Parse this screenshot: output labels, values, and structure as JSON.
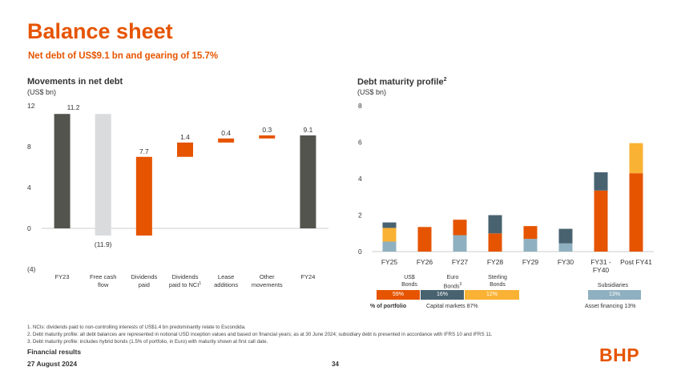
{
  "page": {
    "title": "Balance sheet",
    "subtitle": "Net debt of US$9.1 bn and gearing of 15.7%",
    "footer_title": "Financial results",
    "footer_date": "27 August 2024",
    "page_number": "34",
    "logo": "BHP"
  },
  "colors": {
    "accent": "#e65400",
    "dark": "#54544f",
    "light_grey": "#d9dbdd",
    "navy": "#486270",
    "steel": "#8fb0c0",
    "amber": "#f9b233"
  },
  "footnotes": [
    "1.  NCIs: dividends paid to non-controlling interests of US$1.4 bn predominantly relate to Escondida.",
    "2.  Debt maturity profile: all debt balances are represented in notional USD inception values and based on financial years; as at 30 June 2024; subsidiary debt is presented in accordance with IFRS 10 and IFRS 11.",
    "3.  Debt maturity profile: includes hybrid bonds (1.5% of portfolio, in Euro) with maturity shown at first call date."
  ],
  "legend": {
    "us_label": "US$",
    "us_label2": "Bonds",
    "euro_label": "Euro",
    "euro_label2": "Bonds",
    "euro_sup": "3",
    "sterling_label": "Sterling",
    "sterling_label2": "Bonds",
    "subs_label": "Subsidiaries",
    "us_pct": "59%",
    "euro_pct": "16%",
    "sterling_pct": "12%",
    "subs_pct": "13%",
    "portfolio_label": "% of portfolio",
    "capital_markets": "Capital markets 87%",
    "asset_financing": "Asset financing 13%"
  },
  "chart_data": [
    {
      "type": "waterfall",
      "title": "Movements in net debt",
      "unit": "(US$ bn)",
      "ylim": [
        -4,
        12
      ],
      "yticks": [
        -4,
        0,
        4,
        8,
        12
      ],
      "ytick_labels": [
        "(4)",
        "0",
        "4",
        "8",
        "12"
      ],
      "categories": [
        "FY23",
        "Free cash flow",
        "Dividends paid",
        "Dividends paid to NCI",
        "Lease additions",
        "Other movements",
        "FY24"
      ],
      "category_lines": [
        [
          "FY23"
        ],
        [
          "Free cash",
          "flow"
        ],
        [
          "Dividends",
          "paid"
        ],
        [
          "Dividends",
          "paid to NCI"
        ],
        [
          "Lease",
          "additions"
        ],
        [
          "Other",
          "movements"
        ],
        [
          "FY24"
        ]
      ],
      "cat_sup": [
        null,
        null,
        null,
        "1",
        null,
        null,
        null
      ],
      "steps": [
        {
          "from": 0,
          "to": 11.2,
          "kind": "total",
          "label": "11.2"
        },
        {
          "from": 11.2,
          "to": -0.7,
          "kind": "decrease",
          "label": "(11.9)"
        },
        {
          "from": -0.7,
          "to": 7.0,
          "kind": "increase",
          "label": "7.7"
        },
        {
          "from": 7.0,
          "to": 8.4,
          "kind": "increase",
          "label": "1.4"
        },
        {
          "from": 8.4,
          "to": 8.8,
          "kind": "increase",
          "label": "0.4"
        },
        {
          "from": 8.8,
          "to": 9.1,
          "kind": "increase",
          "label": "0.3"
        },
        {
          "from": 0,
          "to": 9.1,
          "kind": "total",
          "label": "9.1"
        }
      ]
    },
    {
      "type": "stacked_bar",
      "title": "Debt maturity profile",
      "title_sup": "2",
      "unit": "(US$ bn)",
      "ylim": [
        0,
        8
      ],
      "yticks": [
        0,
        2,
        4,
        6,
        8
      ],
      "ytick_labels": [
        "0",
        "2",
        "4",
        "6",
        "8"
      ],
      "categories": [
        "FY25",
        "FY26",
        "FY27",
        "FY28",
        "FY29",
        "FY30",
        "FY31 - FY40",
        "Post FY41"
      ],
      "category_lines": [
        [
          "FY25"
        ],
        [
          "FY26"
        ],
        [
          "FY27"
        ],
        [
          "FY28"
        ],
        [
          "FY29"
        ],
        [
          "FY30"
        ],
        [
          "FY31 -",
          "FY40"
        ],
        [
          "Post FY41"
        ]
      ],
      "series": [
        {
          "name": "Subsidiaries",
          "color": "steel",
          "values": [
            0.55,
            0,
            0.9,
            0,
            0.7,
            0.45,
            0,
            0
          ]
        },
        {
          "name": "US$ Bonds",
          "color": "accent",
          "values": [
            0,
            1.35,
            0.85,
            1.0,
            0.7,
            0,
            3.35,
            4.3
          ]
        },
        {
          "name": "Sterling Bonds",
          "color": "amber",
          "values": [
            0.75,
            0,
            0,
            0,
            0,
            0,
            0,
            1.65
          ]
        },
        {
          "name": "Euro Bonds",
          "color": "navy",
          "values": [
            0.3,
            0,
            0,
            1.0,
            0,
            0.8,
            1.0,
            0
          ]
        }
      ]
    }
  ]
}
